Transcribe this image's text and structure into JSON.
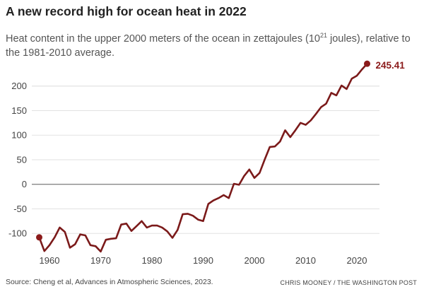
{
  "chart_data": {
    "type": "line",
    "title": "A new record high for ocean heat in 2022",
    "subtitle_pre": "Heat content in the upper 2000 meters of the ocean in zettajoules (10",
    "subtitle_sup": "21",
    "subtitle_post": " joules), relative to the 1981-2010 average.",
    "xlabel": "",
    "ylabel": "",
    "xlim": [
      1958,
      2022
    ],
    "ylim": [
      -140,
      250
    ],
    "x_ticks": [
      1960,
      1970,
      1980,
      1990,
      2000,
      2010,
      2020
    ],
    "y_ticks": [
      -100,
      -50,
      0,
      50,
      100,
      150,
      200
    ],
    "grid": true,
    "line_color": "#7b1a1a",
    "end_label": "245.41",
    "series": [
      {
        "name": "Ocean heat content",
        "x": [
          1958,
          1959,
          1960,
          1961,
          1962,
          1963,
          1964,
          1965,
          1966,
          1967,
          1968,
          1969,
          1970,
          1971,
          1972,
          1973,
          1974,
          1975,
          1976,
          1977,
          1978,
          1979,
          1980,
          1981,
          1982,
          1983,
          1984,
          1985,
          1986,
          1987,
          1988,
          1989,
          1990,
          1991,
          1992,
          1993,
          1994,
          1995,
          1996,
          1997,
          1998,
          1999,
          2000,
          2001,
          2002,
          2003,
          2004,
          2005,
          2006,
          2007,
          2008,
          2009,
          2010,
          2011,
          2012,
          2013,
          2014,
          2015,
          2016,
          2017,
          2018,
          2019,
          2020,
          2021,
          2022
        ],
        "values": [
          -108,
          -136,
          -124,
          -108,
          -88,
          -97,
          -129,
          -122,
          -102,
          -104,
          -124,
          -126,
          -137,
          -113,
          -111,
          -110,
          -82,
          -80,
          -95,
          -85,
          -75,
          -88,
          -84,
          -84,
          -88,
          -96,
          -109,
          -93,
          -61,
          -60,
          -64,
          -72,
          -75,
          -40,
          -33,
          -28,
          -22,
          -28,
          1,
          -1,
          17,
          30,
          13,
          23,
          50,
          76,
          77,
          87,
          110,
          96,
          110,
          125,
          121,
          130,
          143,
          157,
          164,
          186,
          181,
          201,
          194,
          215,
          221,
          234,
          245.41
        ]
      }
    ]
  },
  "source": "Source: Cheng et al, Advances in Atmospheric Sciences, 2023.",
  "credit": "CHRIS MOONEY / THE WASHINGTON POST"
}
